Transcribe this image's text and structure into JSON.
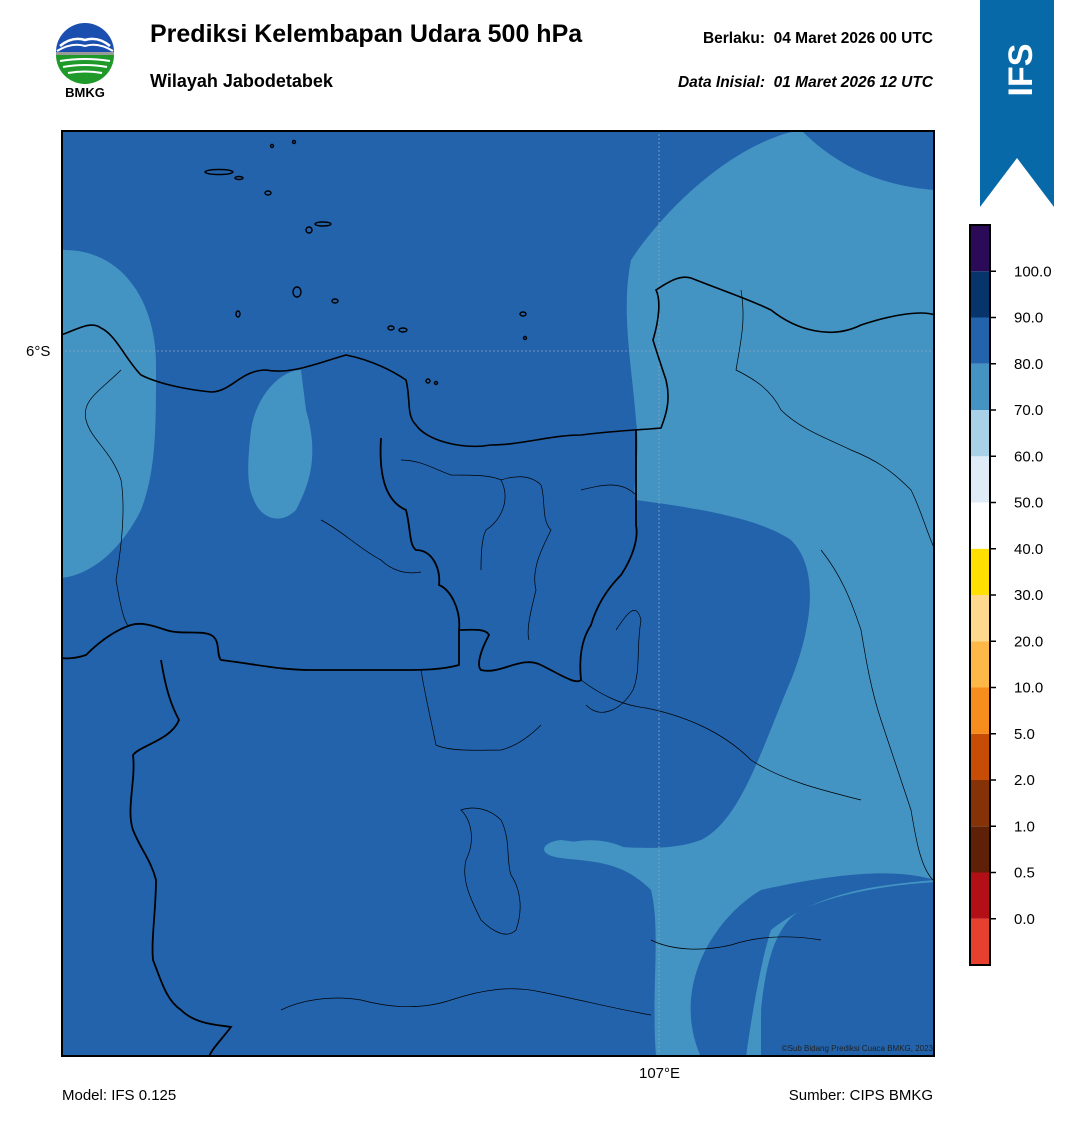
{
  "header": {
    "logo_text": "BMKG",
    "title": "Prediksi Kelembapan Udara 500 hPa",
    "subtitle": "Wilayah Jabodetabek",
    "valid_label": "Berlaku:",
    "valid_value": "04 Maret 2026 00 UTC",
    "initial_label": "Data Inisial:",
    "initial_value": "01 Maret 2026 12 UTC"
  },
  "ribbon": {
    "text": "IFS",
    "color": "#0769a8"
  },
  "map": {
    "lat_label": "6°S",
    "lon_label": "107°E",
    "copyright": "©Sub Bidang Prediksi Cuaca BMKG, 2023",
    "fill_colors": {
      "band_80_90": "#2263ac",
      "band_70_80": "#4393c3"
    }
  },
  "colorbar": {
    "ticks": [
      "100.0",
      "90.0",
      "80.0",
      "70.0",
      "60.0",
      "50.0",
      "40.0",
      "30.0",
      "20.0",
      "10.0",
      "5.0",
      "2.0",
      "1.0",
      "0.5",
      "0.0"
    ],
    "colors": [
      "#e8402e",
      "#b30f16",
      "#5e2007",
      "#863207",
      "#c74c05",
      "#f78d1c",
      "#fdb847",
      "#fed88c",
      "#ffe000",
      "#ffffff",
      "#dfebf7",
      "#a8d0e6",
      "#4393c3",
      "#2263ac",
      "#07356b",
      "#2b0b57"
    ]
  },
  "footer": {
    "model": "Model: IFS 0.125",
    "source": "Sumber: CIPS BMKG"
  }
}
